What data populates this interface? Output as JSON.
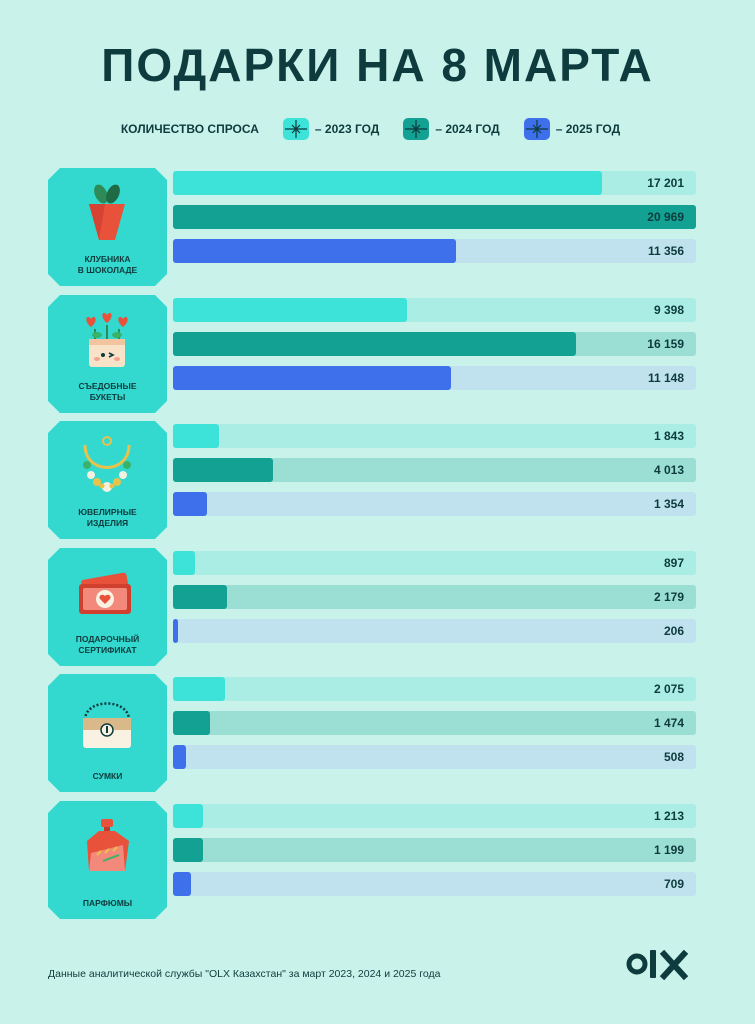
{
  "title": "ПОДАРКИ НА 8 МАРТА",
  "legend": {
    "title": "КОЛИЧЕСТВО СПРОСА",
    "items": [
      {
        "label": "– 2023 ГОД",
        "color": "#3de3d8"
      },
      {
        "label": "– 2024 ГОД",
        "color": "#12a192"
      },
      {
        "label": "– 2025 ГОД",
        "color": "#3d70ea"
      }
    ]
  },
  "chart_data": {
    "type": "bar",
    "title": "ПОДАРКИ НА 8 МАРТА",
    "xlabel": "",
    "ylabel": "",
    "xlim": [
      0,
      20969
    ],
    "categories": [
      "КЛУБНИКА\nВ ШОКОЛАДЕ",
      "СЪЕДОБНЫЕ\nБУКЕТЫ",
      "ЮВЕЛИРНЫЕ\nИЗДЕЛИЯ",
      "ПОДАРОЧНЫЙ\nСЕРТИФИКАТ",
      "СУМКИ",
      "ПАРФЮМЫ"
    ],
    "icons": [
      "strawberry-icon",
      "bouquet-icon",
      "necklace-icon",
      "gift-card-icon",
      "bag-icon",
      "perfume-icon"
    ],
    "series": [
      {
        "name": "2023 ГОД",
        "values": [
          17201,
          9398,
          1843,
          897,
          2075,
          1213
        ],
        "labels": [
          "17 201",
          "9 398",
          "1 843",
          "897",
          "2 075",
          "1 213"
        ]
      },
      {
        "name": "2024 ГОД",
        "values": [
          20969,
          16159,
          4013,
          2179,
          1474,
          1199
        ],
        "labels": [
          "20 969",
          "16 159",
          "4 013",
          "2 179",
          "1 474",
          "1 199"
        ]
      },
      {
        "name": "2025 ГОД",
        "values": [
          11356,
          11148,
          1354,
          206,
          508,
          709
        ],
        "labels": [
          "11 356",
          "11 148",
          "1 354",
          "206",
          "508",
          "709"
        ]
      }
    ],
    "orientation": "horizontal",
    "grid": false,
    "legend_position": "top"
  },
  "footer": {
    "note": "Данные аналитической службы \"OLX Казахстан\" за март 2023, 2024 и 2025 года",
    "logo": "OLX"
  }
}
